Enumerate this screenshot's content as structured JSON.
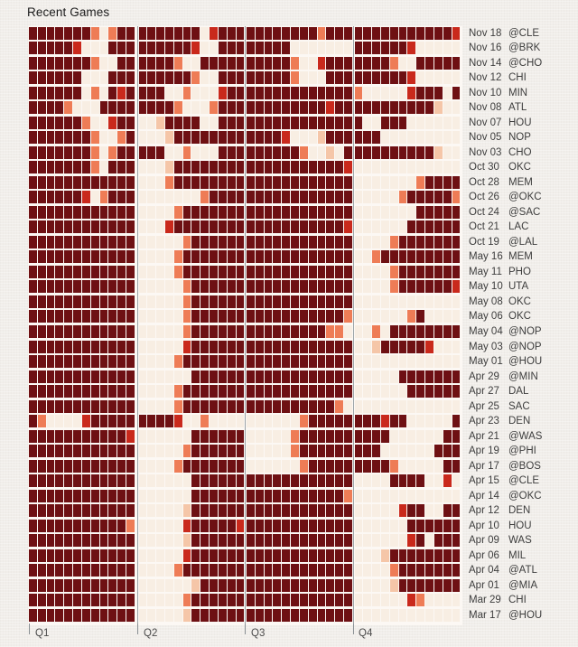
{
  "title": "Recent Games",
  "axis": {
    "quarters": [
      "Q1",
      "Q2",
      "Q3",
      "Q4"
    ],
    "minutes_per_quarter": 12
  },
  "palette": {
    "D": "#6e1013",
    "R": "#c9291c",
    "S": "#ee7c56",
    "P": "#f5c6a8",
    ".": "#f8eee3"
  },
  "legend": {
    "D": "dark maroon - high intensity minute",
    "R": "bright red - medium-high intensity minute",
    "S": "salmon - medium intensity minute",
    "P": "pale peach - low intensity minute",
    ".": "cream - not on court / no value"
  },
  "chart_data": {
    "type": "heatmap",
    "title": "Recent Games",
    "x_unit": "game minute, 48 columns = 4 quarters x 12 minutes",
    "quarters": [
      "Q1",
      "Q2",
      "Q3",
      "Q4"
    ],
    "grid": true,
    "legend_position": "none",
    "rows": [
      {
        "date": "Nov 18",
        "opp": "@CLE",
        "cells": "DDDDDDDS.SDDDDDDDDD.RDDDDDDDDDDDSDDDDDDDDDDDDDDR"
      },
      {
        "date": "Nov 16",
        "opp": "@BRK",
        "cells": "DDDDDR...DDDDDDDDDR..DDDDDDDD.......DDDDDDR....."
      },
      {
        "date": "Nov 14",
        "opp": "@CHO",
        "cells": "DDDDDDDS..DDDDDDS..DDDDDDDDDDS..RDDDDDDDS..DDDDD"
      },
      {
        "date": "Nov 12",
        "opp": "CHI",
        "cells": "DDDDDD...DDDDDDDDDS..DDDDDDDDS...DDDDDDDDDR....."
      },
      {
        "date": "Nov 10",
        "opp": "MIN",
        "cells": "DDDDDD.S.DRDDDD..S...RDDDDDDDDDDDDDDS.....RDDD.DD"
      },
      {
        "date": "Nov 08",
        "opp": "ATL",
        "cells": "DDDDS...DDDDDDDDS...SDDDDDDDDDDDDRDDDDDDDDDDDP..."
      },
      {
        "date": "Nov 07",
        "opp": "HOU",
        "cells": "DDDDDDS..RDD..PDDDD..DDDDDDDDDDDDDDDD..DDD......."
      },
      {
        "date": "Nov 05",
        "opp": "NOP",
        "cells": "DDDDDDDS..SD...PDDDDDDDDDDDDR...PDDDDDD........."
      },
      {
        "date": "Nov 03",
        "opp": "CHO",
        "cells": "DDDDDDDS.SDDDDD..S...DDDDDDDDDS..P.DDDDDDDDDDP.."
      },
      {
        "date": "Oct 30",
        "opp": "OKC",
        "cells": "DDDDDDDS.DDD...PDDDDDDDDDDDDDDDDDDDR............"
      },
      {
        "date": "Oct 28",
        "opp": "MEM",
        "cells": "DDDDDDDDDDDD...SDDDDDDDDDDDDDDDDDDDD.......SDDDD"
      },
      {
        "date": "Oct 26",
        "opp": "@OKC",
        "cells": "DDDDDDR.SDDD.......SDDDDDDDDDDDDDDDD.....SDDDDDS"
      },
      {
        "date": "Oct 24",
        "opp": "@SAC",
        "cells": "DDDDDDDDDDDD....SDDDDDDDDDDDDDDDDDDD.......DDDDD"
      },
      {
        "date": "Oct 21",
        "opp": "LAC",
        "cells": "DDDDDDDDDDDD...RDDDDDDDDDDDDDDDDDDDR......DDDDDD"
      },
      {
        "date": "Oct 19",
        "opp": "@LAL",
        "cells": "DDDDDDDDDDDD.....SDDDDDDDDDDDDDDDDDD....SDDDDDDD"
      },
      {
        "date": "May 16",
        "opp": "MEM",
        "cells": "DDDDDDDDDDDD....SDDDDDDDDDDDDDDDDDDD..SDDDDDDDDD"
      },
      {
        "date": "May 11",
        "opp": "PHO",
        "cells": "DDDDDDDDDDDD....SDDDDDDDDDDDDDDDDDDD....SDDDDDDD"
      },
      {
        "date": "May 10",
        "opp": "UTA",
        "cells": "DDDDDDDDDDDD.....SDDDDDDDDDDDDDDDDDD....SDDDDDDR"
      },
      {
        "date": "May 08",
        "opp": "OKC",
        "cells": "DDDDDDDDDDDD.....SDDDDDDDDDDDDDDDDDD............"
      },
      {
        "date": "May 06",
        "opp": "OKC",
        "cells": "DDDDDDDDDDDD.....SDDDDDDDDDDDDDDDDDS......SD...."
      },
      {
        "date": "May 04",
        "opp": "@NOP",
        "cells": "DDDDDDDDDDDD.....SDDDDDDDDDDDDDDDSS...S.DDDDDDDD"
      },
      {
        "date": "May 03",
        "opp": "@NOP",
        "cells": "DDDDDDDDDDDD.....RDDDDDDDDDDDDDDDDDD..PDDDDDR..."
      },
      {
        "date": "May 01",
        "opp": "@HOU",
        "cells": "DDDDDDDDDDDD....SDDDDDDDDDDDDDDDDDDD............"
      },
      {
        "date": "Apr 29",
        "opp": "@MIN",
        "cells": "DDDDDDDDDDDD......DDDDDDDDDDDDDDDDDD.....DDDDDDD"
      },
      {
        "date": "Apr 27",
        "opp": "DAL",
        "cells": "DDDDDDDDDDDD....SDDDDDDDDDDDDDDDDDDD......DDDDDD"
      },
      {
        "date": "Apr 25",
        "opp": "SAC",
        "cells": "DDDDDDDDDDDD....SDDDDDDDDDDDDDDDDDS............."
      },
      {
        "date": "Apr 23",
        "opp": "DEN",
        "cells": "DS....RDDDDDDDDDR..S..........SDDDDDDDDRDD.....D"
      },
      {
        "date": "Apr 21",
        "opp": "@WAS",
        "cells": "DDDDDDDDDDDR......DDDDDD.....SDDDDDDDDDD......DD"
      },
      {
        "date": "Apr 19",
        "opp": "@PHI",
        "cells": "DDDDDDDDDDDD.....SDDDDDD.....SDDDDDDDDD......DDD"
      },
      {
        "date": "Apr 17",
        "opp": "@BOS",
        "cells": "DDDDDDDDDDDD....SDDDDDDD......SDDDDDDDDDS.....DD"
      },
      {
        "date": "Apr 15",
        "opp": "@CLE",
        "cells": "DDDDDDDDDDDD......DDDDDDDDDDDDDDDDDD....DDDD..R."
      },
      {
        "date": "Apr 14",
        "opp": "@OKC",
        "cells": "DDDDDDDDDDDD......DDDDDDDDDDDDDDDDDS............"
      },
      {
        "date": "Apr 12",
        "opp": "DEN",
        "cells": "DDDDDDDDDDDD.....PDDDDDDDDDDDDDDDDDD.....RDD..DD"
      },
      {
        "date": "Apr 10",
        "opp": "HOU",
        "cells": "DDDDDDDDDDDS.....RDDDDDRDDDDDDDDDDDD......DDDDDD"
      },
      {
        "date": "Apr 09",
        "opp": "WAS",
        "cells": "DDDDDDDDDDDD.....PDDDDDDDDDDDDDDDDDD......RD.DDD"
      },
      {
        "date": "Apr 06",
        "opp": "MIL",
        "cells": "DDDDDDDDDDDD.....RDDDDDDDDDDDDDDDDDD...PDDDDDDDD"
      },
      {
        "date": "Apr 04",
        "opp": "@ATL",
        "cells": "DDDDDDDDDDDD....SDDDDDDDDDDDDDDDDDDD....SDDDDDDD"
      },
      {
        "date": "Apr 01",
        "opp": "@MIA",
        "cells": "DDDDDDDDDDDD......PDDDDDDDDDDDDDDDDD....PDDDDDDD"
      },
      {
        "date": "Mar 29",
        "opp": "CHI",
        "cells": "DDDDDDDDDDDD.....SDDDDDDDDDDDDDDDDDD......RS...."
      },
      {
        "date": "Mar 17",
        "opp": "@HOU",
        "cells": "DDDDDDDDDDDD.....PDDDDDDDDDDDDDDDDDD............"
      }
    ]
  }
}
